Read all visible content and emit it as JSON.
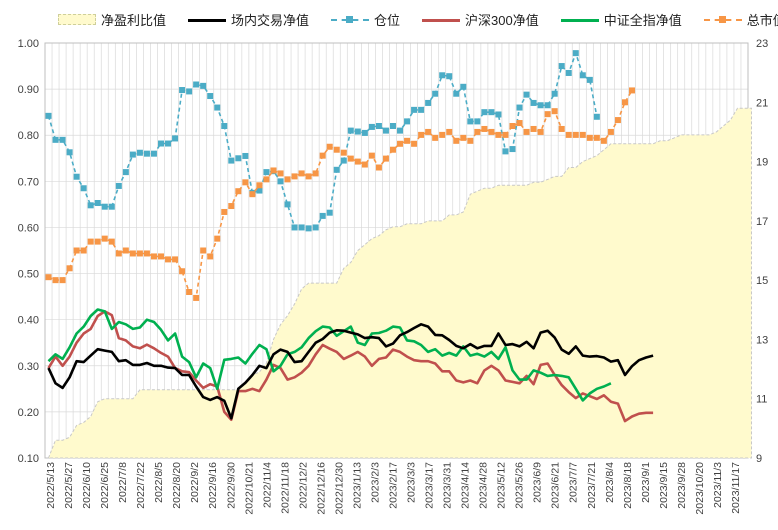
{
  "chart_data": {
    "type": "line",
    "legend": {
      "area": "净盈利比值",
      "exchange": "场内交易净值",
      "position": "仓位",
      "hs300": "沪深300净值",
      "zzqz": "中证全指净值",
      "mktval": "总市值"
    },
    "y_left": {
      "min": 0.1,
      "max": 1.0,
      "ticks": [
        "0.10",
        "0.20",
        "0.30",
        "0.40",
        "0.50",
        "0.60",
        "0.70",
        "0.80",
        "0.90",
        "1.00"
      ]
    },
    "y_right": {
      "min": 9,
      "max": 23,
      "ticks": [
        "9",
        "11",
        "13",
        "15",
        "17",
        "19",
        "21",
        "23"
      ]
    },
    "x_labels": [
      "2022/5/13",
      "2022/5/27",
      "2022/6/10",
      "2022/6/25",
      "2022/7/8",
      "2022/7/22",
      "2022/8/5",
      "2022/8/20",
      "2022/9/2",
      "2022/9/16",
      "2022/9/30",
      "2022/10/21",
      "2022/11/4",
      "2022/11/18",
      "2022/12/2",
      "2022/12/16",
      "2022/12/30",
      "2023/1/13",
      "2023/2/3",
      "2023/2/17",
      "2023/3/3",
      "2023/3/17",
      "2023/3/31",
      "2023/4/14",
      "2023/4/28",
      "2023/5/12",
      "2023/5/26",
      "2023/6/9",
      "2023/6/21",
      "2023/7/7",
      "2023/7/21",
      "2023/8/4",
      "2023/8/18",
      "2023/9/1",
      "2023/9/15",
      "2023/9/28",
      "2023/10/20",
      "2023/11/3",
      "2023/11/17"
    ],
    "series": [
      {
        "name": "净盈利比值",
        "axis": "right",
        "values": [
          9,
          9.6,
          9.6,
          9.7,
          10.1,
          10.2,
          10.4,
          10.9,
          11,
          11,
          11,
          11,
          11,
          11.3,
          11.3,
          11.3,
          11.3,
          11.3,
          11.3,
          11.3,
          11.3,
          11.3,
          11.3,
          11.3,
          11.3,
          11.3,
          11.3,
          11.3,
          11.5,
          11.8,
          11.9,
          12.2,
          13,
          13.5,
          13.8,
          14.2,
          14.7,
          14.9,
          14.9,
          14.9,
          14.9,
          14.9,
          15.4,
          15.6,
          16,
          16.2,
          16.4,
          16.5,
          16.7,
          16.8,
          16.8,
          16.9,
          16.9,
          16.9,
          17.0,
          17.0,
          17.0,
          17.2,
          17.2,
          17.3,
          17.9,
          18.0,
          18.1,
          18.1,
          18.2,
          18.2,
          18.2,
          18.2,
          18.2,
          18.3,
          18.3,
          18.4,
          18.5,
          18.5,
          18.8,
          18.8,
          19.0,
          19.1,
          19.2,
          19.4,
          19.6,
          19.6,
          19.6,
          19.6,
          19.6,
          19.6,
          19.6,
          19.7,
          19.7,
          19.8,
          19.9,
          19.9,
          19.9,
          19.9,
          19.9,
          20,
          20.2,
          20.4,
          20.8,
          20.8,
          20.8
        ]
      },
      {
        "name": "场内交易净值",
        "axis": "left",
        "values": [
          0.295,
          0.262,
          0.252,
          0.275,
          0.31,
          0.308,
          0.322,
          0.336,
          0.333,
          0.33,
          0.31,
          0.312,
          0.302,
          0.302,
          0.306,
          0.3,
          0.3,
          0.296,
          0.295,
          0.28,
          0.28,
          0.255,
          0.232,
          0.226,
          0.232,
          0.224,
          0.186,
          0.25,
          0.263,
          0.28,
          0.3,
          0.295,
          0.325,
          0.335,
          0.33,
          0.308,
          0.31,
          0.33,
          0.35,
          0.358,
          0.372,
          0.377,
          0.376,
          0.372,
          0.368,
          0.36,
          0.362,
          0.36,
          0.342,
          0.348,
          0.366,
          0.373,
          0.382,
          0.39,
          0.385,
          0.367,
          0.366,
          0.356,
          0.343,
          0.338,
          0.347,
          0.338,
          0.343,
          0.343,
          0.37,
          0.345,
          0.347,
          0.342,
          0.352,
          0.338,
          0.372,
          0.376,
          0.361,
          0.335,
          0.326,
          0.342,
          0.322,
          0.32,
          0.321,
          0.318,
          0.309,
          0.312,
          0.28,
          0.299,
          0.312,
          0.318,
          0.322
        ]
      },
      {
        "name": "沪深300净值",
        "axis": "left",
        "values": [
          0.295,
          0.32,
          0.3,
          0.32,
          0.35,
          0.37,
          0.38,
          0.408,
          0.418,
          0.41,
          0.36,
          0.355,
          0.342,
          0.338,
          0.346,
          0.338,
          0.328,
          0.32,
          0.295,
          0.288,
          0.286,
          0.268,
          0.252,
          0.26,
          0.255,
          0.2,
          0.183,
          0.245,
          0.245,
          0.25,
          0.245,
          0.27,
          0.302,
          0.295,
          0.27,
          0.275,
          0.285,
          0.3,
          0.325,
          0.345,
          0.337,
          0.33,
          0.315,
          0.322,
          0.33,
          0.32,
          0.3,
          0.315,
          0.318,
          0.335,
          0.33,
          0.32,
          0.312,
          0.31,
          0.31,
          0.305,
          0.288,
          0.288,
          0.268,
          0.264,
          0.268,
          0.262,
          0.29,
          0.3,
          0.29,
          0.268,
          0.265,
          0.262,
          0.278,
          0.26,
          0.302,
          0.305,
          0.28,
          0.258,
          0.243,
          0.23,
          0.24,
          0.234,
          0.228,
          0.236,
          0.222,
          0.218,
          0.18,
          0.19,
          0.196,
          0.198,
          0.198
        ]
      },
      {
        "name": "中证全指净值",
        "axis": "left",
        "values": [
          0.31,
          0.325,
          0.315,
          0.34,
          0.37,
          0.385,
          0.408,
          0.422,
          0.418,
          0.38,
          0.395,
          0.39,
          0.38,
          0.383,
          0.4,
          0.395,
          0.378,
          0.355,
          0.37,
          0.32,
          0.308,
          0.275,
          0.305,
          0.295,
          0.25,
          0.313,
          0.315,
          0.318,
          0.305,
          0.326,
          0.345,
          0.336,
          0.288,
          0.3,
          0.325,
          0.33,
          0.34,
          0.36,
          0.375,
          0.385,
          0.383,
          0.365,
          0.375,
          0.385,
          0.35,
          0.345,
          0.37,
          0.371,
          0.376,
          0.385,
          0.383,
          0.355,
          0.353,
          0.345,
          0.33,
          0.336,
          0.322,
          0.328,
          0.322,
          0.342,
          0.322,
          0.326,
          0.32,
          0.33,
          0.315,
          0.34,
          0.29,
          0.27,
          0.27,
          0.29,
          0.285,
          0.278,
          0.28,
          0.278,
          0.275,
          0.25,
          0.225,
          0.24,
          0.25,
          0.255,
          0.262
        ]
      },
      {
        "name": "仓位",
        "axis": "left",
        "values": [
          0.842,
          0.79,
          0.79,
          0.763,
          0.71,
          0.685,
          0.648,
          0.653,
          0.645,
          0.645,
          0.69,
          0.72,
          0.758,
          0.762,
          0.76,
          0.76,
          0.782,
          0.782,
          0.793,
          0.898,
          0.895,
          0.91,
          0.907,
          0.885,
          0.86,
          0.82,
          0.745,
          0.75,
          0.755,
          0.675,
          0.68,
          0.72,
          0.722,
          0.7,
          0.65,
          0.6,
          0.6,
          0.598,
          0.6,
          0.625,
          0.632,
          0.725,
          0.745,
          0.81,
          0.808,
          0.805,
          0.818,
          0.82,
          0.81,
          0.82,
          0.81,
          0.83,
          0.855,
          0.855,
          0.87,
          0.89,
          0.93,
          0.928,
          0.89,
          0.905,
          0.83,
          0.83,
          0.85,
          0.85,
          0.845,
          0.765,
          0.77,
          0.86,
          0.888,
          0.87,
          0.865,
          0.865,
          0.89,
          0.95,
          0.935,
          0.978,
          0.93,
          0.92,
          0.84
        ]
      },
      {
        "name": "总市值",
        "axis": "right",
        "values": [
          15.1,
          15.0,
          15.0,
          15.4,
          16.0,
          16.0,
          16.3,
          16.3,
          16.4,
          16.3,
          15.9,
          16.0,
          15.9,
          15.9,
          15.9,
          15.8,
          15.8,
          15.7,
          15.7,
          15.3,
          14.6,
          14.4,
          16.0,
          15.8,
          16.4,
          17.3,
          17.5,
          18.0,
          18.3,
          17.9,
          18.2,
          18.4,
          18.7,
          18.6,
          18.4,
          18.5,
          18.6,
          18.5,
          18.6,
          19.2,
          19.5,
          19.4,
          19.3,
          19.1,
          19.0,
          18.9,
          19.2,
          18.8,
          19.1,
          19.4,
          19.6,
          19.7,
          19.6,
          19.9,
          20.0,
          19.8,
          19.9,
          20.0,
          19.7,
          19.8,
          19.7,
          20.0,
          20.1,
          20.0,
          19.9,
          19.9,
          20.2,
          20.3,
          20.0,
          20.1,
          20.0,
          20.6,
          20.7,
          20.1,
          19.9,
          19.9,
          19.9,
          19.8,
          19.8,
          19.7,
          20.0,
          20.4,
          21.0,
          21.4
        ]
      }
    ]
  }
}
